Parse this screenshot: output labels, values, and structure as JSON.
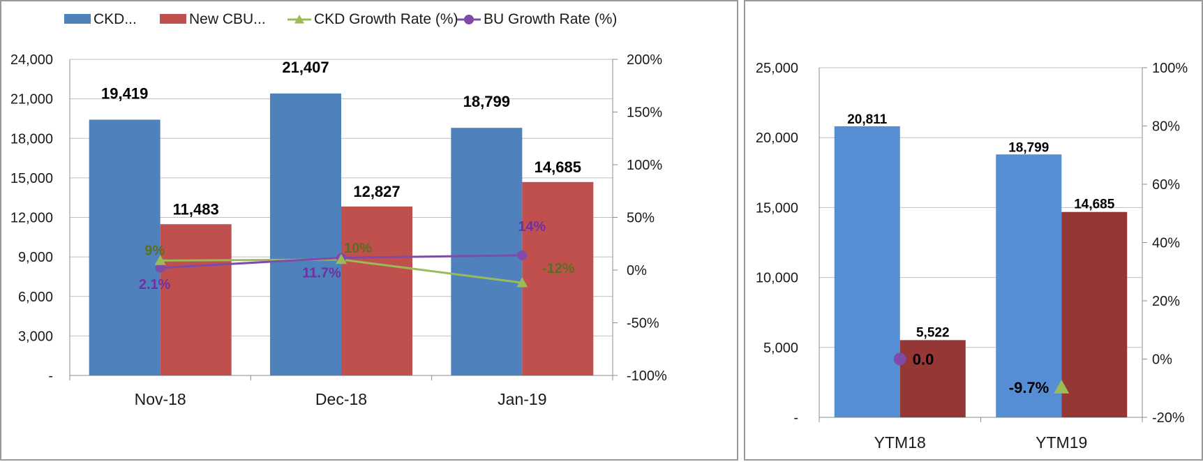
{
  "colors": {
    "ckd": "#4f81bd",
    "cbu": "#c0504d",
    "ckd_growth": "#9bbb59",
    "bu_growth": "#7f4aa8",
    "ckd_growth_label": "#5a6e22",
    "bu_growth_label": "#7030a0",
    "ytm_ckd": "#558ed5",
    "ytm_cbu": "#953735"
  },
  "chart_data": [
    {
      "type": "bar",
      "legend": [
        "CKD...",
        "New CBU...",
        "CKD Growth Rate (%)",
        "BU Growth Rate (%)"
      ],
      "categories": [
        "Nov-18",
        "Dec-18",
        "Jan-19"
      ],
      "series": [
        {
          "name": "CKD...",
          "kind": "bar",
          "axis": "left",
          "values": [
            19419,
            21407,
            18799
          ],
          "labels": [
            "19,419",
            "21,407",
            "18,799"
          ]
        },
        {
          "name": "New CBU...",
          "kind": "bar",
          "axis": "left",
          "values": [
            11483,
            12827,
            14685
          ],
          "labels": [
            "11,483",
            "12,827",
            "14,685"
          ]
        },
        {
          "name": "CKD Growth Rate (%)",
          "kind": "line",
          "axis": "right",
          "marker": "triangle",
          "values": [
            9,
            10,
            -12
          ],
          "labels": [
            "9%",
            "10%",
            "-12%"
          ]
        },
        {
          "name": "BU Growth Rate (%)",
          "kind": "line",
          "axis": "right",
          "marker": "circle",
          "values": [
            2.1,
            11.7,
            14
          ],
          "labels": [
            "2.1%",
            "11.7%",
            "14%"
          ]
        }
      ],
      "ylim": [
        0,
        24000
      ],
      "yticks": [
        0,
        3000,
        6000,
        9000,
        12000,
        15000,
        18000,
        21000,
        24000
      ],
      "yticklabels": [
        "-",
        "3,000",
        "6,000",
        "9,000",
        "12,000",
        "15,000",
        "18,000",
        "21,000",
        "24,000"
      ],
      "y2lim": [
        -100,
        200
      ],
      "y2ticks": [
        -100,
        -50,
        0,
        50,
        100,
        150,
        200
      ],
      "y2ticklabels": [
        "-100%",
        "-50%",
        "0%",
        "50%",
        "100%",
        "150%",
        "200%"
      ],
      "legend_position": "top",
      "grid": true
    },
    {
      "type": "bar",
      "categories": [
        "YTM18",
        "YTM19"
      ],
      "series": [
        {
          "name": "CKD",
          "kind": "bar",
          "axis": "left",
          "values": [
            20811,
            18799
          ],
          "labels": [
            "20,811",
            "18,799"
          ]
        },
        {
          "name": "New CBU",
          "kind": "bar",
          "axis": "left",
          "values": [
            5522,
            14685
          ],
          "labels": [
            "5,522",
            "14,685"
          ]
        },
        {
          "name": "CKD Growth Rate (%)",
          "kind": "marker",
          "axis": "right",
          "marker": "triangle",
          "values": [
            null,
            -9.7
          ],
          "labels": [
            "",
            "-9.7%"
          ]
        },
        {
          "name": "BU Growth Rate (%)",
          "kind": "marker",
          "axis": "right",
          "marker": "circle",
          "values": [
            0.0,
            null
          ],
          "labels": [
            "0.0",
            ""
          ]
        }
      ],
      "ylim": [
        0,
        25000
      ],
      "yticks": [
        0,
        5000,
        10000,
        15000,
        20000,
        25000
      ],
      "yticklabels": [
        "-",
        "5,000",
        "10,000",
        "15,000",
        "20,000",
        "25,000"
      ],
      "y2lim": [
        -20,
        100
      ],
      "y2ticks": [
        -20,
        0,
        20,
        40,
        60,
        80,
        100
      ],
      "y2ticklabels": [
        "-20%",
        "0%",
        "20%",
        "40%",
        "60%",
        "80%",
        "100%"
      ],
      "grid": true
    }
  ]
}
